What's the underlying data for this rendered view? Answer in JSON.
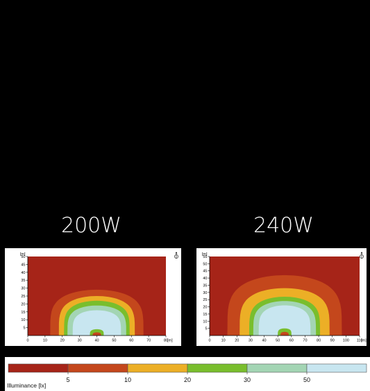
{
  "chart_data": [
    {
      "type": "heatmap",
      "title": "200W",
      "xlabel": "[m]",
      "ylabel": "[m]",
      "xlim": [
        0,
        80
      ],
      "ylim": [
        0,
        50
      ],
      "xticks": [
        0,
        10,
        20,
        30,
        40,
        50,
        60,
        70,
        80
      ],
      "yticks": [
        5,
        10,
        15,
        20,
        25,
        30,
        35,
        40,
        45,
        50
      ],
      "center_x": 40,
      "contours": [
        {
          "min_lux": 5,
          "half_width": 27,
          "height": 29,
          "color": "#c4471c"
        },
        {
          "min_lux": 10,
          "half_width": 22,
          "height": 25,
          "color": "#ecaf26"
        },
        {
          "min_lux": 20,
          "half_width": 19,
          "height": 22,
          "color": "#79be2d"
        },
        {
          "min_lux": 30,
          "half_width": 17,
          "height": 19,
          "color": "#a3d5b4"
        },
        {
          "min_lux": 50,
          "half_width": 14,
          "height": 16,
          "color": "#c8e6f0"
        }
      ],
      "hotspot": {
        "x": 40,
        "half_width": 4,
        "height": 4
      }
    },
    {
      "type": "heatmap",
      "title": "240W",
      "xlabel": "[m]",
      "ylabel": "[m]",
      "xlim": [
        0,
        110
      ],
      "ylim": [
        0,
        55
      ],
      "xticks": [
        0,
        10,
        20,
        30,
        40,
        50,
        60,
        70,
        80,
        90,
        100,
        110
      ],
      "yticks": [
        5,
        10,
        15,
        20,
        25,
        30,
        35,
        40,
        45,
        50,
        55
      ],
      "center_x": 55,
      "contours": [
        {
          "min_lux": 5,
          "half_width": 42,
          "height": 42,
          "color": "#c4471c"
        },
        {
          "min_lux": 10,
          "half_width": 33,
          "height": 33,
          "color": "#ecaf26"
        },
        {
          "min_lux": 20,
          "half_width": 26,
          "height": 27,
          "color": "#79be2d"
        },
        {
          "min_lux": 30,
          "half_width": 23,
          "height": 24,
          "color": "#a3d5b4"
        },
        {
          "min_lux": 50,
          "half_width": 19,
          "height": 21,
          "color": "#c8e6f0"
        }
      ],
      "hotspot": {
        "x": 55,
        "half_width": 5,
        "height": 5
      }
    }
  ],
  "labels": {
    "left": "200W",
    "right": "240W"
  },
  "legend": {
    "title": "Illuminance [lx]",
    "ticks": [
      "5",
      "10",
      "20",
      "30",
      "50"
    ],
    "colors": [
      "#a62418",
      "#c4471c",
      "#ecaf26",
      "#79be2d",
      "#a3d5b4",
      "#c8e6f0"
    ]
  },
  "colors": {
    "background": "#a62418",
    "hotspot": "#79be2d",
    "hotspot_core": "#c4471c"
  }
}
